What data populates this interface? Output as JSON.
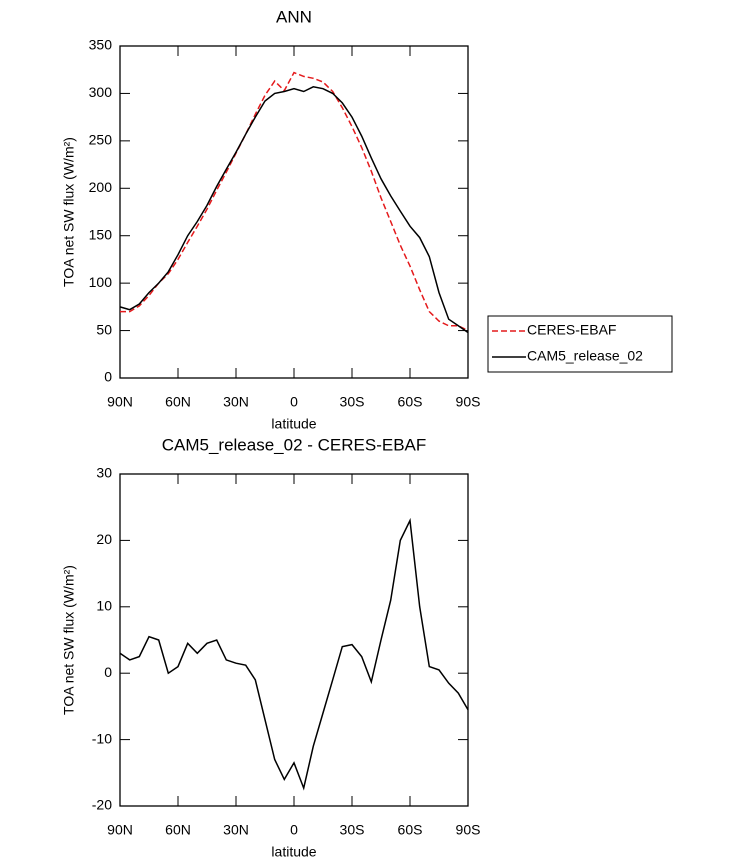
{
  "chart_data": [
    {
      "type": "line",
      "title": "ANN",
      "xlabel": "latitude",
      "ylabel": "TOA net SW flux (W/m²)",
      "x": [
        90,
        85,
        80,
        75,
        70,
        65,
        60,
        55,
        50,
        45,
        40,
        35,
        30,
        25,
        20,
        15,
        10,
        5,
        0,
        -5,
        -10,
        -15,
        -20,
        -25,
        -30,
        -35,
        -40,
        -45,
        -50,
        -55,
        -60,
        -65,
        -70,
        -75,
        -80,
        -85,
        -90
      ],
      "series": [
        {
          "name": "CERES-EBAF",
          "color": "#e41a1c",
          "dash": true,
          "values": [
            70,
            70,
            76,
            87,
            100,
            110,
            125,
            143,
            160,
            178,
            198,
            217,
            237,
            257,
            278,
            298,
            313,
            303,
            322,
            318,
            316,
            312,
            302,
            285,
            265,
            243,
            218,
            190,
            165,
            140,
            118,
            93,
            70,
            60,
            55,
            55,
            50
          ]
        },
        {
          "name": "CAM5_release_02",
          "color": "#000000",
          "dash": false,
          "values": [
            75,
            72,
            78,
            90,
            100,
            112,
            130,
            150,
            165,
            182,
            202,
            220,
            238,
            257,
            275,
            292,
            300,
            302,
            305,
            302,
            307,
            305,
            300,
            290,
            275,
            255,
            232,
            210,
            192,
            176,
            160,
            148,
            128,
            90,
            62,
            55,
            48
          ]
        }
      ],
      "xlim": [
        90,
        -90
      ],
      "xticks": [
        {
          "value": 90,
          "label": "90N"
        },
        {
          "value": 60,
          "label": "60N"
        },
        {
          "value": 30,
          "label": "30N"
        },
        0,
        {
          "value": -30,
          "label": "30S"
        },
        {
          "value": -60,
          "label": "60S"
        },
        {
          "value": -90,
          "label": "90S"
        }
      ],
      "ylim": [
        0,
        350
      ],
      "yticks": [
        0,
        50,
        100,
        150,
        200,
        250,
        300,
        350
      ],
      "legend": "right"
    },
    {
      "type": "line",
      "title": "CAM5_release_02 - CERES-EBAF",
      "xlabel": "latitude",
      "ylabel": "TOA net SW flux (W/m²)",
      "x": [
        90,
        85,
        80,
        75,
        70,
        65,
        60,
        55,
        50,
        45,
        40,
        35,
        30,
        25,
        20,
        15,
        10,
        5,
        0,
        -5,
        -10,
        -15,
        -20,
        -25,
        -30,
        -35,
        -40,
        -45,
        -50,
        -55,
        -60,
        -65,
        -70,
        -75,
        -80,
        -85,
        -90
      ],
      "series": [
        {
          "color": "#000000",
          "dash": false,
          "values": [
            3,
            2,
            2.5,
            5.5,
            5,
            0,
            1,
            4.5,
            3,
            4.5,
            5,
            2,
            1.5,
            1.2,
            -1,
            -7,
            -13,
            -16,
            -13.5,
            -17.3,
            -11,
            -6,
            -1,
            4,
            4.3,
            2.5,
            -1.3,
            5,
            11,
            20,
            23,
            10,
            1,
            0.5,
            -1.5,
            -3,
            -5.5
          ]
        }
      ],
      "xlim": [
        90,
        -90
      ],
      "xticks": [
        {
          "value": 90,
          "label": "90N"
        },
        {
          "value": 60,
          "label": "60N"
        },
        {
          "value": 30,
          "label": "30N"
        },
        0,
        {
          "value": -30,
          "label": "30S"
        },
        {
          "value": -60,
          "label": "60S"
        },
        {
          "value": -90,
          "label": "90S"
        }
      ],
      "ylim": [
        -20,
        30
      ],
      "yticks": [
        -20,
        -10,
        0,
        10,
        20,
        30
      ]
    }
  ]
}
